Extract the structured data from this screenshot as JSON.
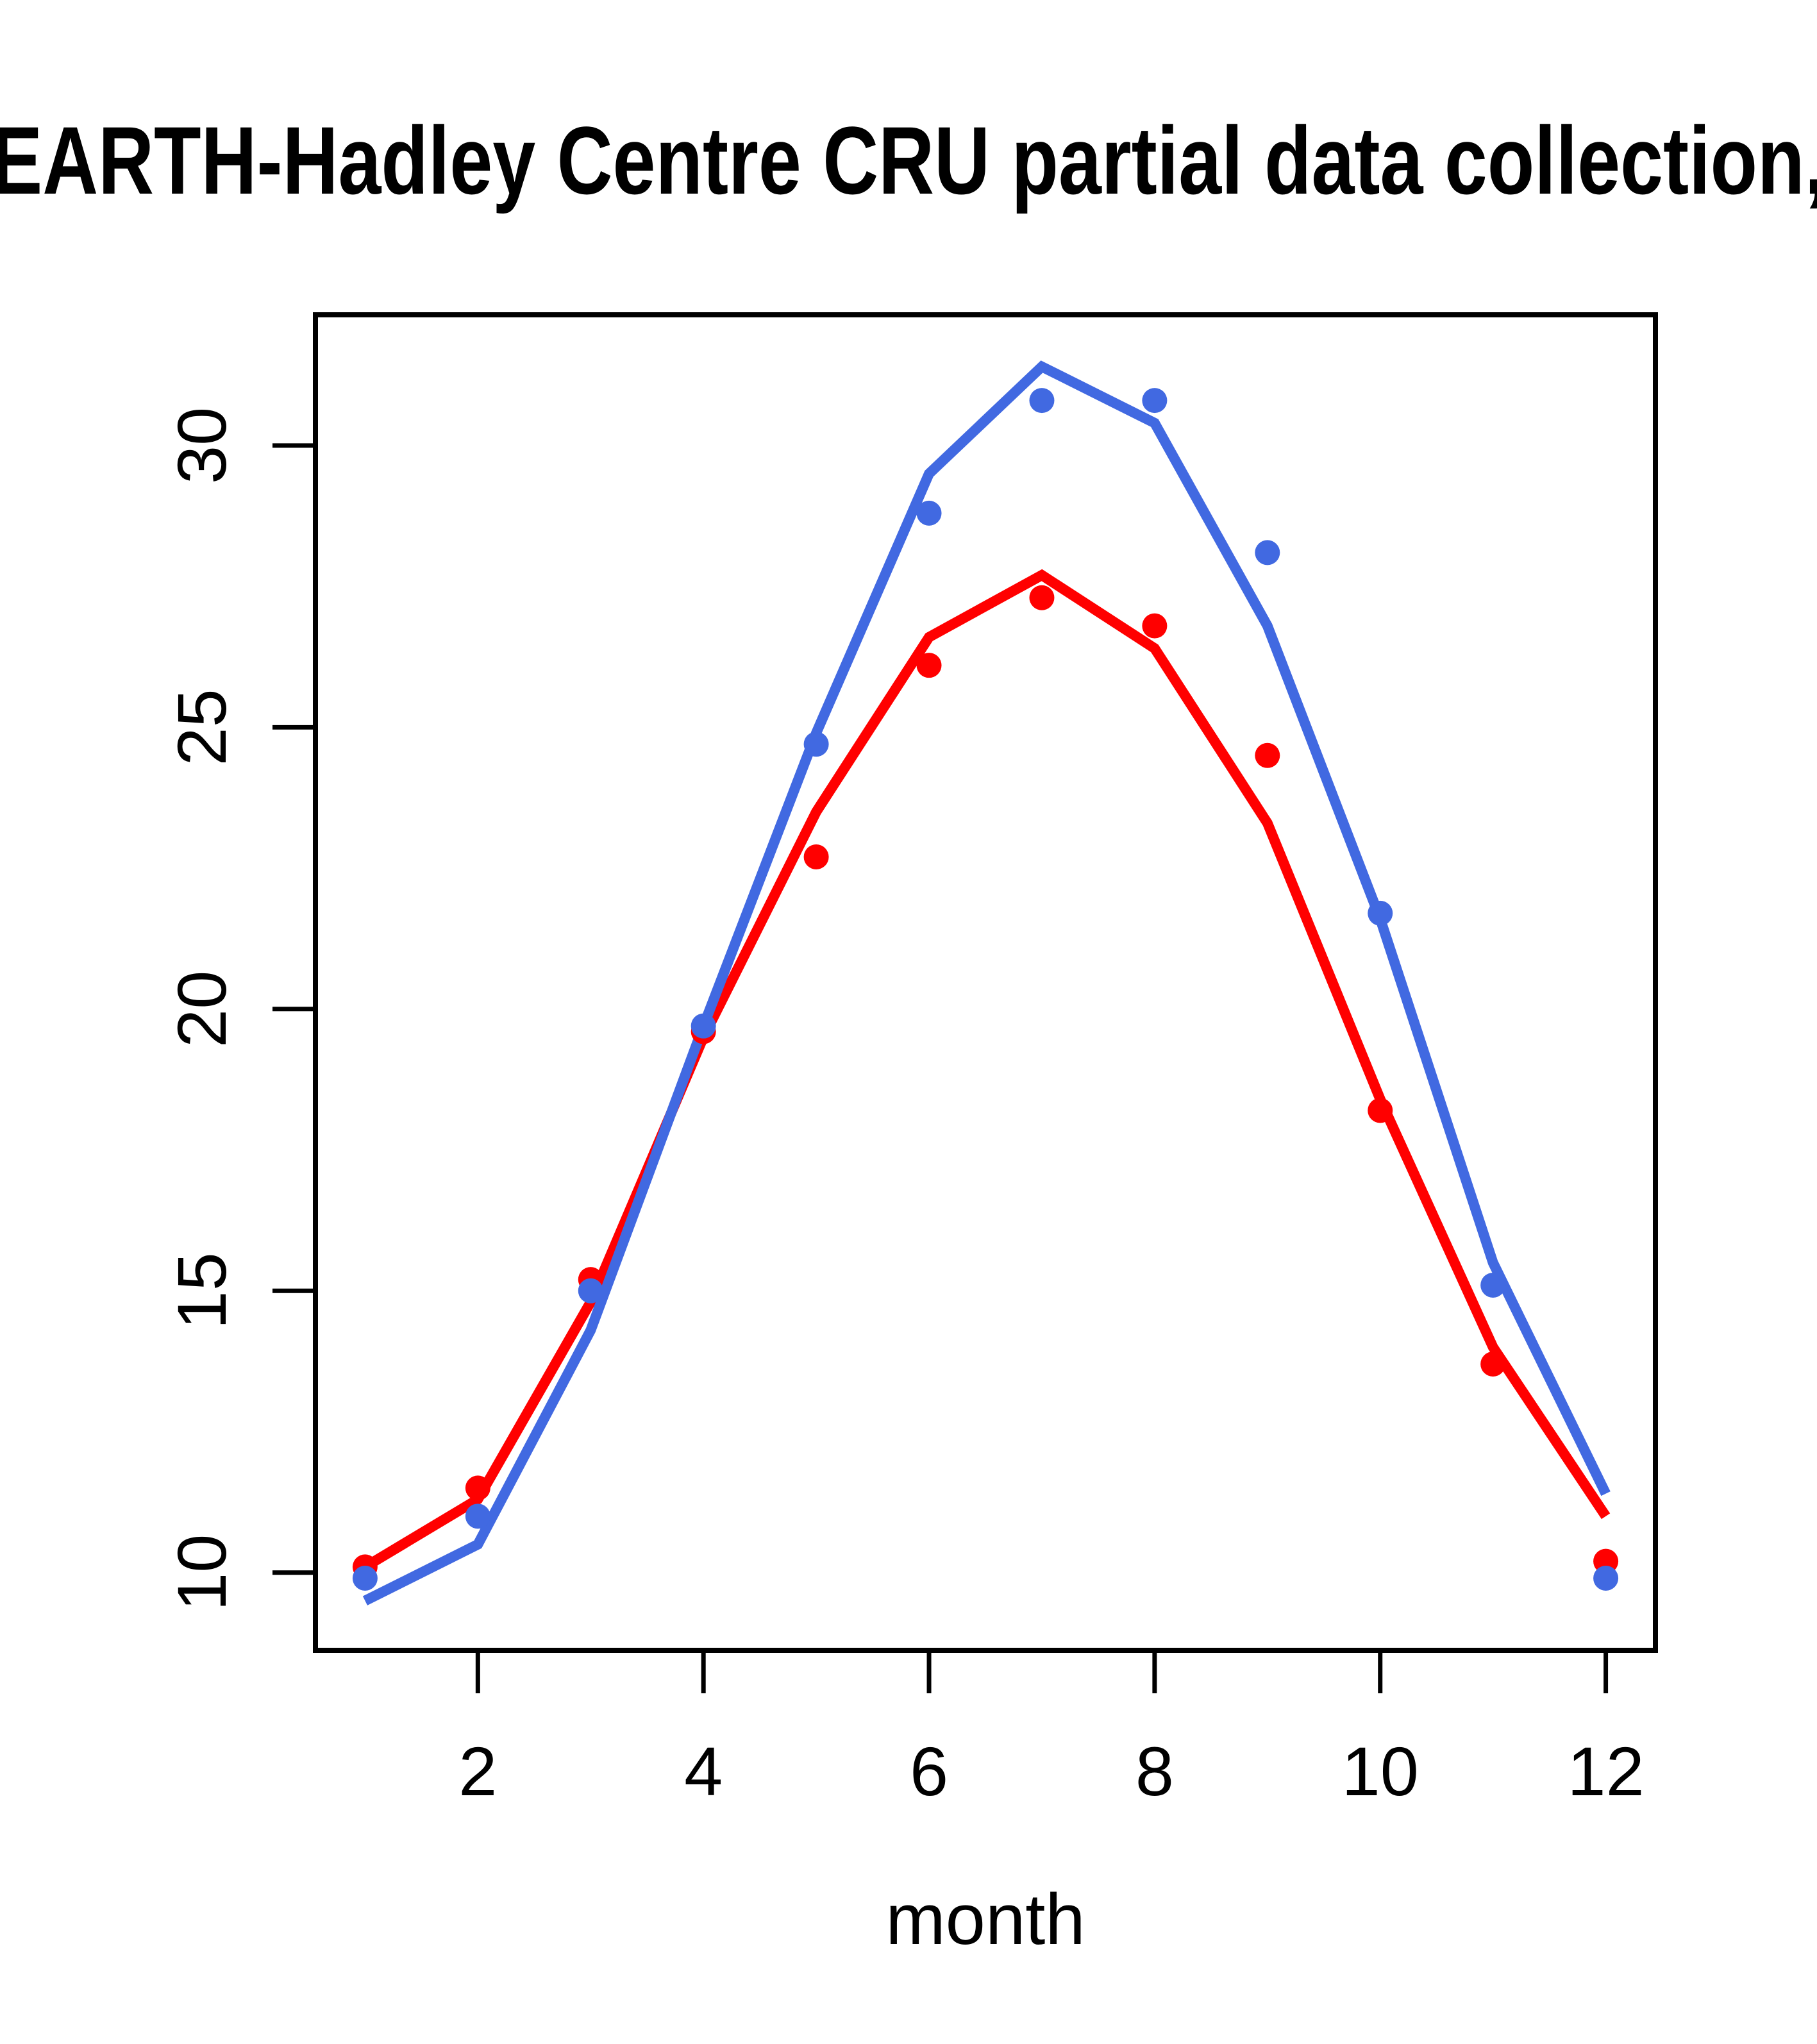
{
  "title": "EARTH-Hadley Centre  CRU partial data collection,",
  "chart_data": {
    "type": "line",
    "title": "EARTH-Hadley Centre  CRU partial data collection,",
    "xlabel": "month",
    "ylabel": "",
    "x": [
      1,
      2,
      3,
      4,
      5,
      6,
      7,
      8,
      9,
      10,
      11,
      12
    ],
    "x_ticks": [
      2,
      4,
      6,
      8,
      10,
      12
    ],
    "y_ticks": [
      10,
      15,
      20,
      25,
      30
    ],
    "xlim": [
      0.56,
      12.44
    ],
    "ylim": [
      8.62,
      32.32
    ],
    "grid": false,
    "legend": "none",
    "series": [
      {
        "name": "red-line",
        "type": "line",
        "color": "#FF0000",
        "values": [
          10.1,
          11.3,
          14.8,
          19.5,
          23.5,
          26.6,
          27.7,
          26.4,
          23.3,
          18.4,
          14.0,
          11.0
        ]
      },
      {
        "name": "blue-line",
        "type": "line",
        "color": "#4169E1",
        "values": [
          9.5,
          10.5,
          14.3,
          19.7,
          24.9,
          29.5,
          31.4,
          30.4,
          26.8,
          21.6,
          15.5,
          11.4
        ]
      },
      {
        "name": "red-points",
        "type": "scatter",
        "color": "#FF0000",
        "values": [
          10.1,
          11.5,
          15.2,
          19.6,
          22.7,
          26.1,
          27.3,
          26.8,
          24.5,
          18.2,
          13.7,
          10.2
        ]
      },
      {
        "name": "blue-points",
        "type": "scatter",
        "color": "#4169E1",
        "values": [
          9.9,
          11.0,
          15.0,
          19.7,
          24.7,
          28.8,
          30.8,
          30.8,
          28.1,
          21.7,
          15.1,
          9.9
        ]
      }
    ],
    "axis_color": "#000000",
    "background": "#ffffff"
  }
}
